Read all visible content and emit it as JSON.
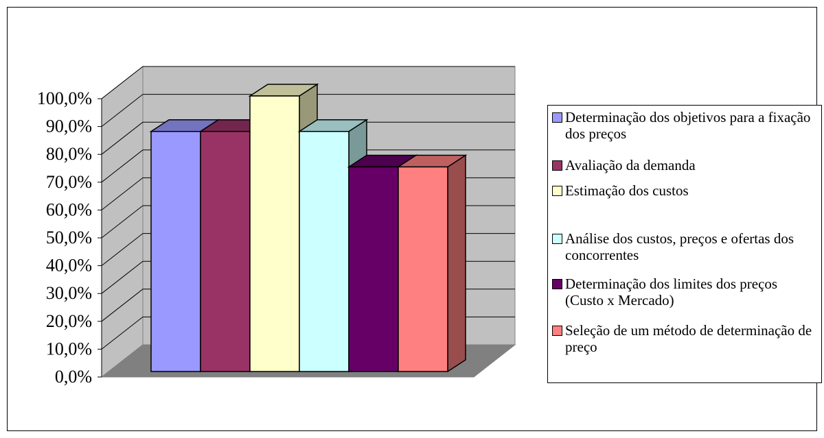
{
  "chart_data": {
    "type": "bar",
    "title": "",
    "xlabel": "",
    "ylabel": "",
    "ylim": [
      0,
      100
    ],
    "yticks": [
      "0,0%",
      "10,0%",
      "20,0%",
      "30,0%",
      "40,0%",
      "50,0%",
      "60,0%",
      "70,0%",
      "80,0%",
      "90,0%",
      "100,0%"
    ],
    "grid": true,
    "three_d": true,
    "legend_position": "right",
    "series": [
      {
        "name": "Determinação dos objetivos para a fixação dos preços",
        "value": 88.0,
        "color": "#9999ff"
      },
      {
        "name": "Avaliação da demanda",
        "value": 88.0,
        "color": "#993366"
      },
      {
        "name": "Estimação dos custos",
        "value": 101.0,
        "color": "#ffffcc"
      },
      {
        "name": "Análise dos custos, preços e ofertas dos concorrentes",
        "value": 88.0,
        "color": "#ccffff"
      },
      {
        "name": "Determinação dos limites dos preços (Custo x Mercado)",
        "value": 75.0,
        "color": "#660066"
      },
      {
        "name": "Seleção de um método de determinação de preço",
        "value": 75.0,
        "color": "#ff8080"
      }
    ]
  }
}
